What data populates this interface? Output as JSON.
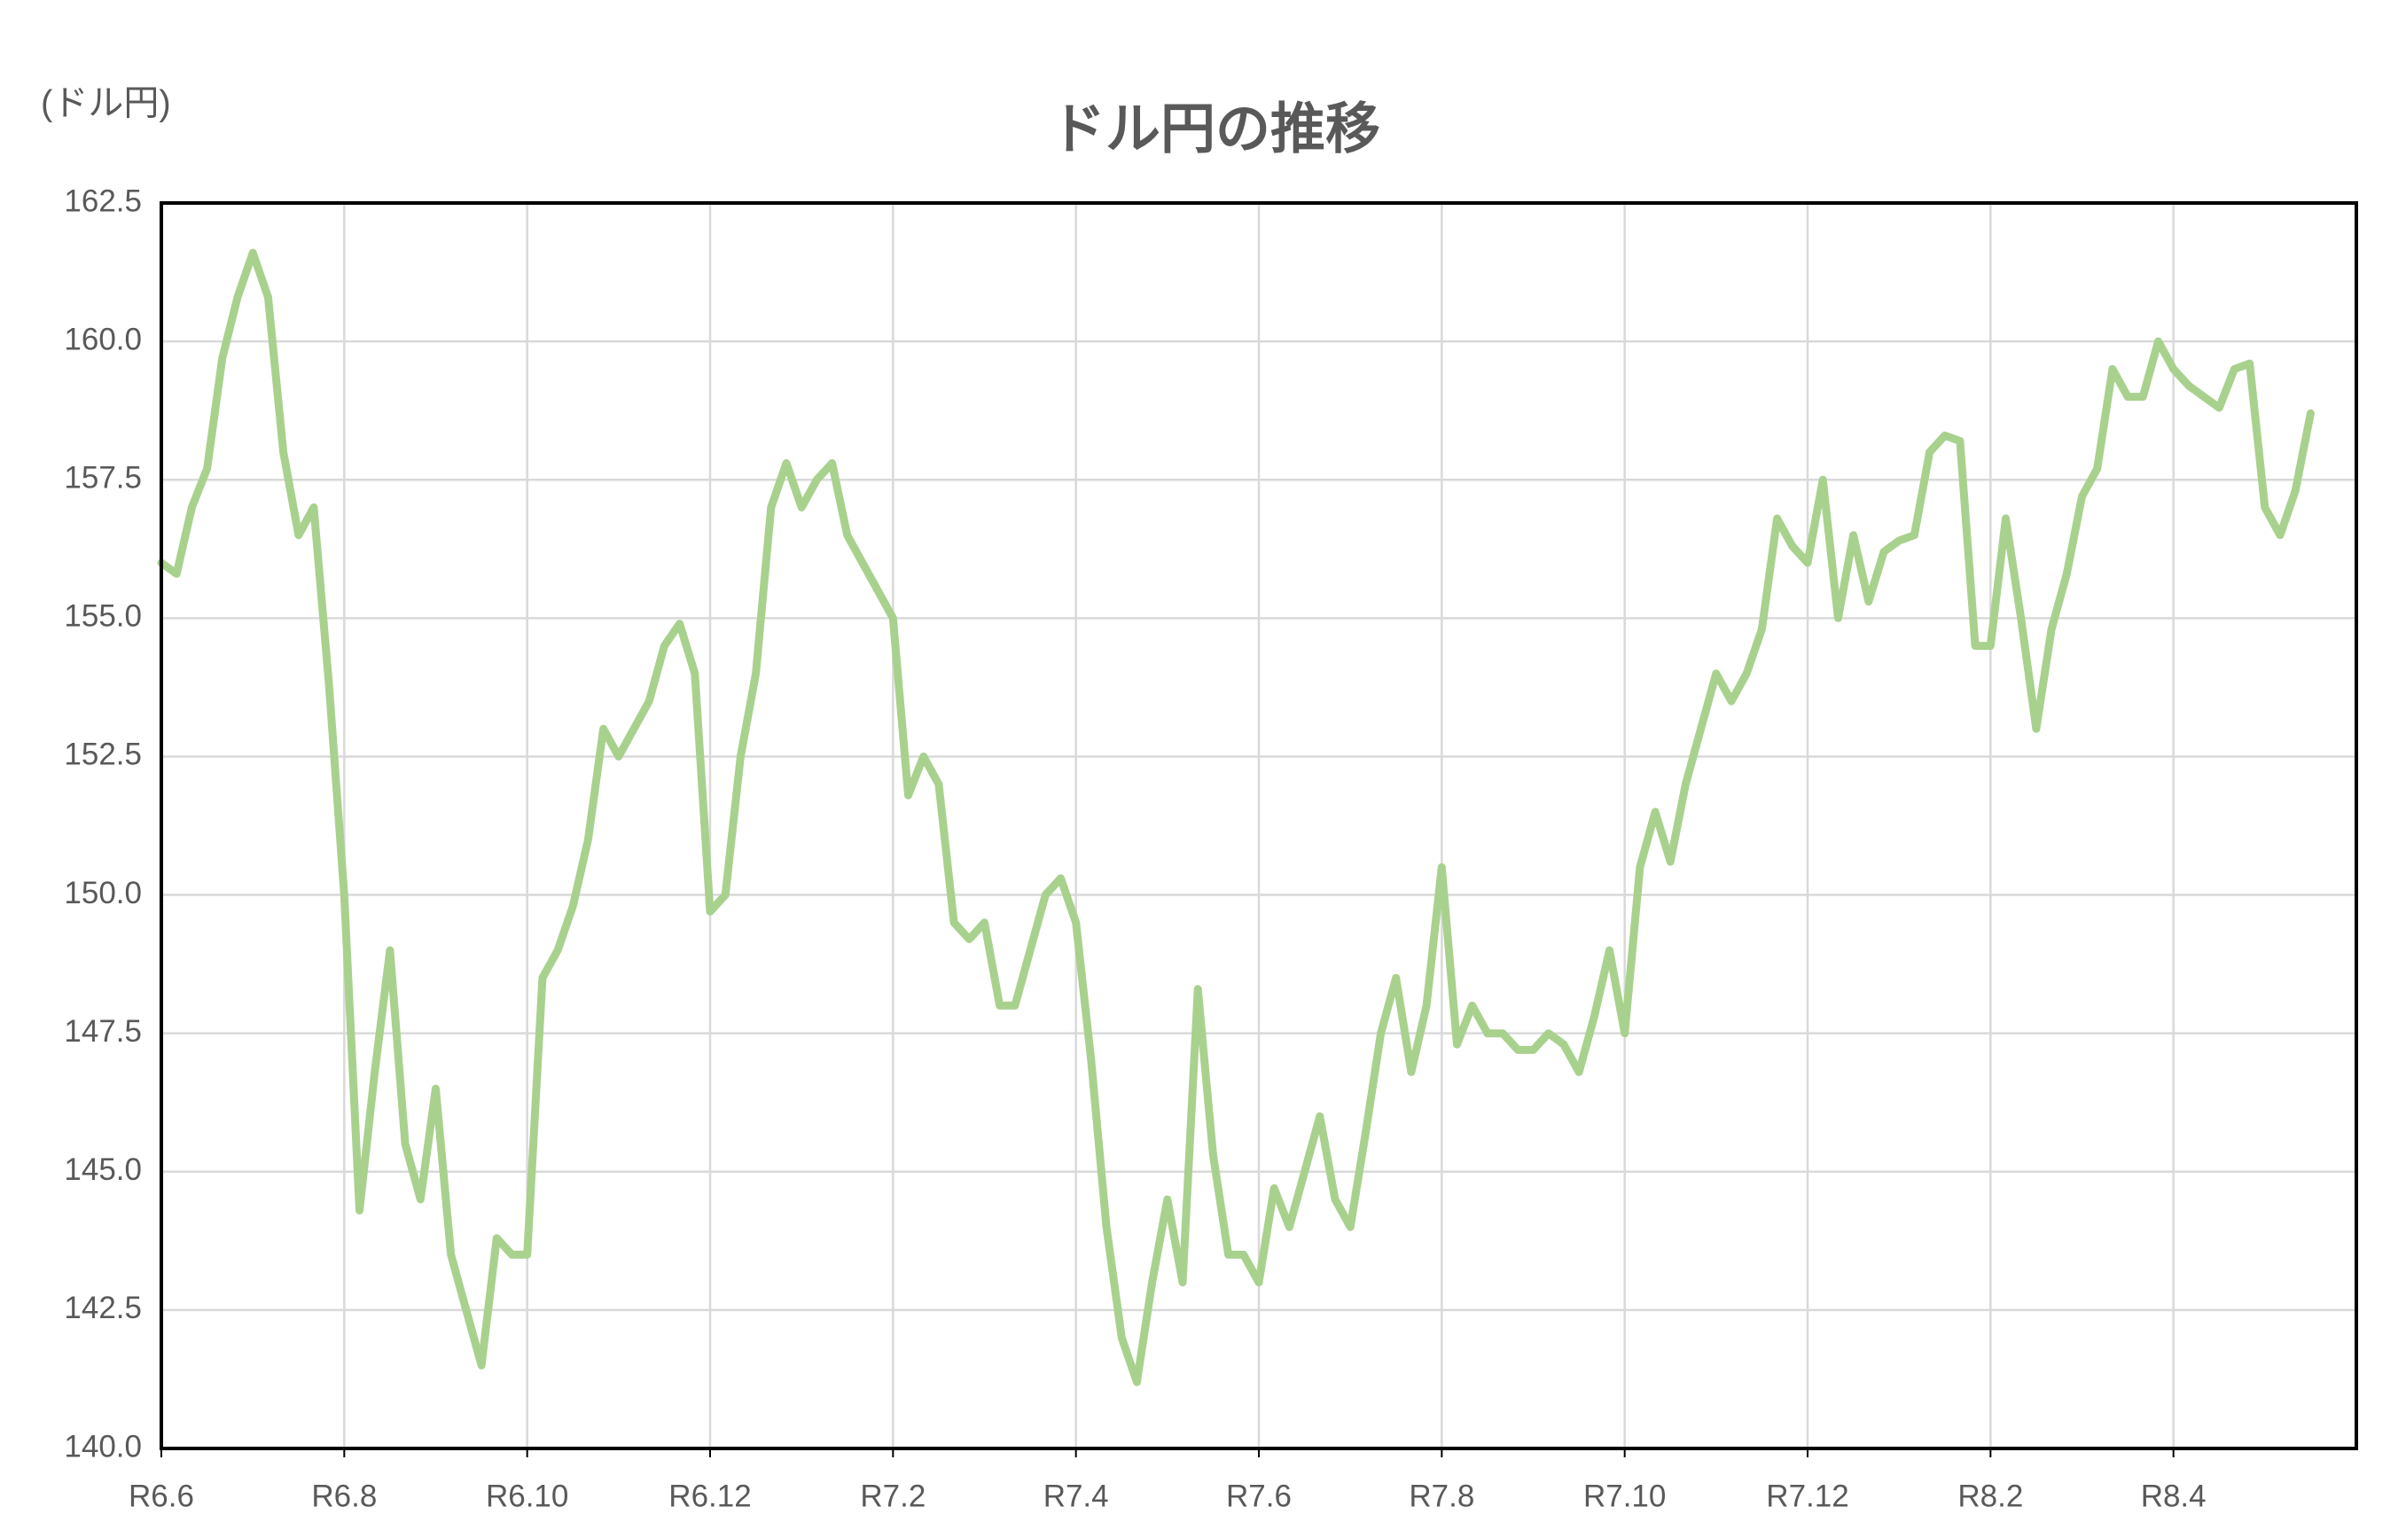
{
  "chart_data": {
    "type": "line",
    "title": "ドル円の推移",
    "y_label": "(ドル円)",
    "color": "#a9d18e",
    "grid": true,
    "categories": [
      "R6.6",
      null,
      null,
      null,
      null,
      null,
      null,
      null,
      null,
      null,
      null,
      null,
      "R6.8",
      null,
      null,
      null,
      null,
      null,
      null,
      null,
      null,
      null,
      null,
      null,
      "R6.10",
      null,
      null,
      null,
      null,
      null,
      null,
      null,
      null,
      null,
      null,
      null,
      "R6.12",
      null,
      null,
      null,
      null,
      null,
      null,
      null,
      null,
      null,
      null,
      null,
      "R7.2",
      null,
      null,
      null,
      null,
      null,
      null,
      null,
      null,
      null,
      null,
      null,
      "R7.4",
      null,
      null,
      null,
      null,
      null,
      null,
      null,
      null,
      null,
      null,
      null,
      "R7.6",
      null,
      null,
      null,
      null,
      null,
      null,
      null,
      null,
      null,
      null,
      null,
      "R7.8",
      null,
      null,
      null,
      null,
      null,
      null,
      null,
      null,
      null,
      null,
      null,
      "R7.10",
      null,
      null,
      null,
      null,
      null,
      null,
      null,
      null,
      null,
      null,
      null,
      "R7.12",
      null,
      null,
      null,
      null,
      null,
      null,
      null,
      null,
      null,
      null,
      null,
      "R8.2",
      null,
      null,
      null,
      null,
      null,
      null,
      null,
      null,
      null,
      null,
      null,
      "R8.4",
      null,
      null,
      null,
      null,
      null,
      null,
      null,
      null,
      null,
      null,
      null
    ],
    "values": [
      156.0,
      155.8,
      157.0,
      157.7,
      159.7,
      160.8,
      161.6,
      160.8,
      158.0,
      156.5,
      157.0,
      153.8,
      150.0,
      144.3,
      146.8,
      149.0,
      145.5,
      144.5,
      146.5,
      143.5,
      142.5,
      141.5,
      143.8,
      143.5,
      143.5,
      148.5,
      149.0,
      149.8,
      151.0,
      153.0,
      152.5,
      153.0,
      153.5,
      154.5,
      154.9,
      154.0,
      149.7,
      150.0,
      152.5,
      154.0,
      157.0,
      157.8,
      157.0,
      157.5,
      157.8,
      156.5,
      156.0,
      155.5,
      155.0,
      151.8,
      152.5,
      152.0,
      149.5,
      149.2,
      149.5,
      148.0,
      148.0,
      149.0,
      150.0,
      150.3,
      149.5,
      147.0,
      144.0,
      142.0,
      141.2,
      143.0,
      144.5,
      143.0,
      148.3,
      145.3,
      143.5,
      143.5,
      143.0,
      144.7,
      144.0,
      145.0,
      146.0,
      144.5,
      144.0,
      145.7,
      147.5,
      148.5,
      146.8,
      148.0,
      150.5,
      147.3,
      148.0,
      147.5,
      147.5,
      147.2,
      147.2,
      147.5,
      147.3,
      146.8,
      147.8,
      149.0,
      147.5,
      150.5,
      151.5,
      150.6,
      152.0,
      153.0,
      154.0,
      153.5,
      154.0,
      154.8,
      156.8,
      156.3,
      156.0,
      157.5,
      155.0,
      156.5,
      155.3,
      156.2,
      156.4,
      156.5,
      158.0,
      158.3,
      158.2,
      154.5,
      154.5,
      156.8,
      155.0,
      153.0,
      154.8,
      155.8,
      157.2,
      157.7,
      159.5,
      159.0,
      159.0,
      160.0,
      159.5,
      159.2,
      159.0,
      158.8,
      159.5,
      159.6,
      157.0,
      156.5,
      157.3,
      158.7,
      null,
      null
    ],
    "ylim": [
      140,
      162.5
    ],
    "yticks": [
      {
        "value": 140,
        "label": "140.0"
      },
      142.5,
      {
        "value": 145,
        "label": "145.0"
      },
      147.5,
      {
        "value": 150,
        "label": "150.0"
      },
      152.5,
      {
        "value": 155,
        "label": "155.0"
      },
      157.5,
      {
        "value": 160,
        "label": "160.0"
      },
      162.5
    ]
  }
}
